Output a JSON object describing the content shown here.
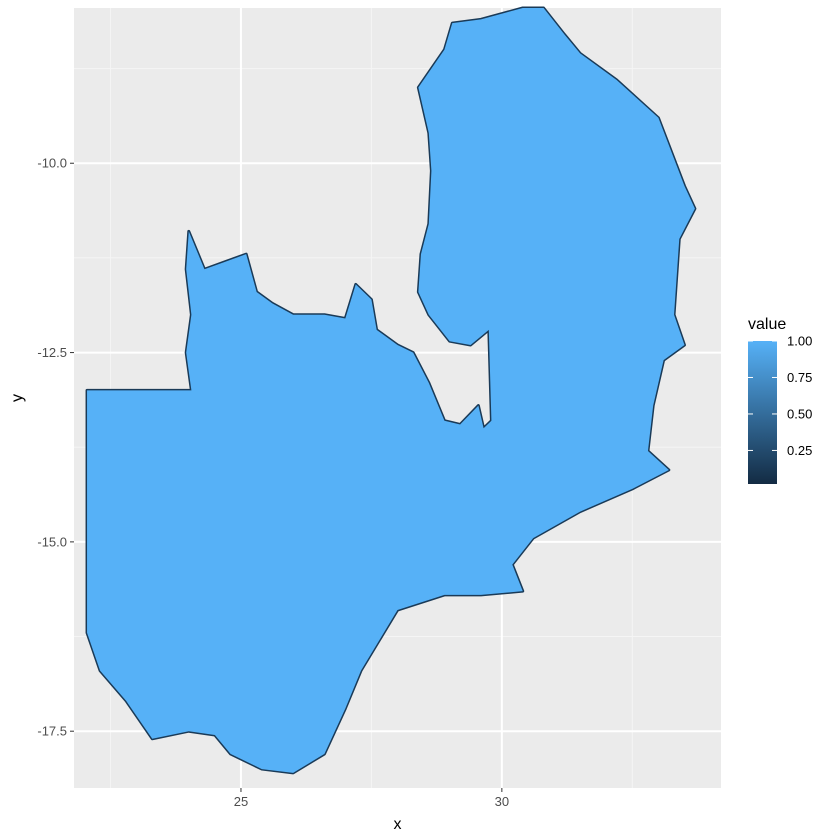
{
  "chart_data": {
    "type": "heatmap",
    "title": "",
    "xlabel": "x",
    "ylabel": "y",
    "xlim": [
      21.8,
      34.2
    ],
    "ylim": [
      -18.25,
      -7.95
    ],
    "x_ticks": [
      25,
      30
    ],
    "x_tick_labels": [
      "25",
      "30"
    ],
    "x_minor_ticks": [
      22.5,
      27.5,
      32.5
    ],
    "y_ticks": [
      -10.0,
      -12.5,
      -15.0,
      -17.5
    ],
    "y_tick_labels": [
      "-10.0",
      "-12.5",
      "-15.0",
      "-17.5"
    ],
    "y_minor_ticks": [
      -8.75,
      -11.25,
      -13.75,
      -16.25
    ],
    "grid": true,
    "fill_value": 1.0,
    "border_value": 0.1,
    "region_outline": [
      [
        22.05,
        -13.0
      ],
      [
        24.05,
        -13.0
      ],
      [
        23.95,
        -12.5
      ],
      [
        24.05,
        -12.0
      ],
      [
        23.95,
        -11.4
      ],
      [
        24.0,
        -10.9
      ],
      [
        24.3,
        -11.4
      ],
      [
        24.7,
        -11.3
      ],
      [
        25.1,
        -11.2
      ],
      [
        25.3,
        -11.7
      ],
      [
        25.6,
        -11.85
      ],
      [
        26.0,
        -12.0
      ],
      [
        26.6,
        -12.0
      ],
      [
        27.0,
        -12.05
      ],
      [
        27.2,
        -11.6
      ],
      [
        27.5,
        -11.8
      ],
      [
        27.6,
        -12.2
      ],
      [
        28.0,
        -12.4
      ],
      [
        28.3,
        -12.5
      ],
      [
        28.6,
        -12.9
      ],
      [
        28.9,
        -13.4
      ],
      [
        29.2,
        -13.45
      ],
      [
        29.55,
        -13.2
      ],
      [
        29.65,
        -13.5
      ],
      [
        29.8,
        -13.4
      ],
      [
        29.75,
        -12.2
      ],
      [
        29.4,
        -12.4
      ],
      [
        29.0,
        -12.35
      ],
      [
        28.6,
        -12.0
      ],
      [
        28.4,
        -11.7
      ],
      [
        28.45,
        -11.2
      ],
      [
        28.6,
        -10.8
      ],
      [
        28.65,
        -10.1
      ],
      [
        28.6,
        -9.6
      ],
      [
        28.4,
        -9.0
      ],
      [
        28.9,
        -8.5
      ],
      [
        29.05,
        -8.15
      ],
      [
        29.6,
        -8.1
      ],
      [
        30.4,
        -7.95
      ],
      [
        30.8,
        -7.95
      ],
      [
        31.2,
        -8.3
      ],
      [
        31.5,
        -8.55
      ],
      [
        32.2,
        -8.9
      ],
      [
        33.0,
        -9.4
      ],
      [
        33.5,
        -10.3
      ],
      [
        33.7,
        -10.6
      ],
      [
        33.4,
        -11.0
      ],
      [
        33.3,
        -12.0
      ],
      [
        33.5,
        -12.4
      ],
      [
        33.1,
        -12.6
      ],
      [
        32.9,
        -13.2
      ],
      [
        32.8,
        -13.8
      ],
      [
        33.2,
        -14.05
      ],
      [
        32.5,
        -14.3
      ],
      [
        31.5,
        -14.6
      ],
      [
        30.6,
        -14.95
      ],
      [
        30.2,
        -15.3
      ],
      [
        30.4,
        -15.65
      ],
      [
        29.6,
        -15.7
      ],
      [
        28.9,
        -15.7
      ],
      [
        28.0,
        -15.9
      ],
      [
        27.3,
        -16.7
      ],
      [
        27.0,
        -17.2
      ],
      [
        26.6,
        -17.8
      ],
      [
        26.0,
        -18.05
      ],
      [
        25.4,
        -18.0
      ],
      [
        24.8,
        -17.8
      ],
      [
        24.5,
        -17.55
      ],
      [
        24.0,
        -17.5
      ],
      [
        23.3,
        -17.6
      ],
      [
        22.8,
        -17.1
      ],
      [
        22.3,
        -16.7
      ],
      [
        22.05,
        -16.2
      ]
    ],
    "legend": {
      "title": "value",
      "placement": "right",
      "labels": [
        "1.00",
        "0.75",
        "0.50",
        "0.25"
      ],
      "values": [
        1.0,
        0.75,
        0.5,
        0.25
      ],
      "range": [
        0.02,
        1.0
      ],
      "color_low": "#132b43",
      "color_high": "#56b1f7"
    },
    "colors": {
      "panel_background": "#ebebeb",
      "grid_major": "#ffffff",
      "grid_minor": "#f5f5f5",
      "fill": "#56b1f7",
      "border": "#1a3a57"
    }
  }
}
